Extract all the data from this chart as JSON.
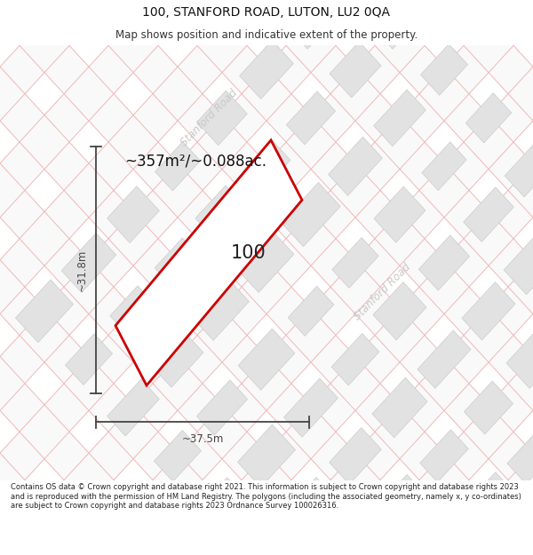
{
  "title": "100, STANFORD ROAD, LUTON, LU2 0QA",
  "subtitle": "Map shows position and indicative extent of the property.",
  "footer": "Contains OS data © Crown copyright and database right 2021. This information is subject to Crown copyright and database rights 2023 and is reproduced with the permission of HM Land Registry. The polygons (including the associated geometry, namely x, y co-ordinates) are subject to Crown copyright and database rights 2023 Ordnance Survey 100026316.",
  "area_label": "~357m²/~0.088ac.",
  "plot_number": "100",
  "width_label": "~37.5m",
  "height_label": "~31.8m",
  "road_label_1": "Stanford Road",
  "road_label_2": "Stanford Road",
  "map_bg": "#f7f7f7",
  "building_fill": "#e2e2e2",
  "building_stroke": "#cccccc",
  "road_fill": "#f9f9f9",
  "road_line_color": "#f0b8b8",
  "road_name_color": "#c8c8c8",
  "plot_outline_color": "#cc0000",
  "plot_fill": "#ffffff",
  "dim_color": "#444444",
  "title_fontsize": 10,
  "subtitle_fontsize": 8.5,
  "footer_fontsize": 6.0
}
